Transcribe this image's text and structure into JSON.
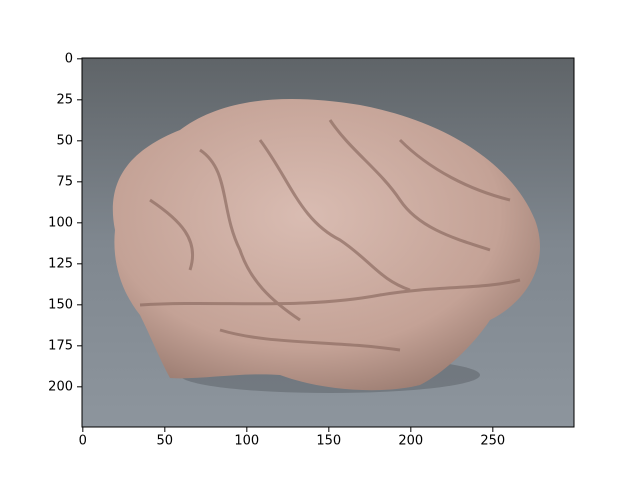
{
  "chart_data": {
    "type": "image",
    "xlim": [
      -0.5,
      299.5
    ],
    "ylim": [
      224.5,
      -0.5
    ],
    "xticks": [
      0,
      50,
      100,
      150,
      200,
      250
    ],
    "yticks": [
      0,
      25,
      50,
      75,
      100,
      125,
      150,
      175,
      200
    ]
  }
}
